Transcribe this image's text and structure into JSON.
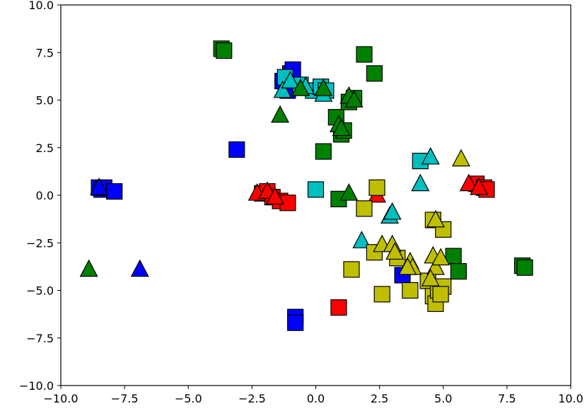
{
  "chart_data": {
    "type": "scatter",
    "title": "",
    "xlabel": "",
    "ylabel": "",
    "xlim": [
      -10,
      10
    ],
    "ylim": [
      -10,
      10
    ],
    "x_ticks": [
      -10.0,
      -7.5,
      -5.0,
      -2.5,
      0.0,
      2.5,
      5.0,
      7.5,
      10.0
    ],
    "y_ticks": [
      -10.0,
      -7.5,
      -5.0,
      -2.5,
      0.0,
      2.5,
      5.0,
      7.5,
      10.0
    ],
    "x_tick_labels": [
      "−10.0",
      "−7.5",
      "−5.0",
      "−2.5",
      "0.0",
      "2.5",
      "5.0",
      "7.5",
      "10.0"
    ],
    "y_tick_labels": [
      "−10.0",
      "−7.5",
      "−5.0",
      "−2.5",
      "0.0",
      "2.5",
      "5.0",
      "7.5",
      "10.0"
    ],
    "grid": false,
    "legend": "none",
    "series": [
      {
        "color": "#0000ff",
        "marker": "square",
        "points": [
          [
            -8.5,
            0.4
          ],
          [
            -8.4,
            0.3
          ],
          [
            -8.3,
            0.4
          ],
          [
            -7.9,
            0.2
          ],
          [
            -3.1,
            2.4
          ],
          [
            -1.0,
            6.4
          ],
          [
            -0.9,
            6.6
          ],
          [
            -1.3,
            6.0
          ],
          [
            -1.1,
            5.5
          ],
          [
            -0.8,
            -6.4
          ],
          [
            -0.8,
            -6.7
          ],
          [
            3.4,
            -4.2
          ]
        ]
      },
      {
        "color": "#0000ff",
        "marker": "triangle",
        "points": [
          [
            -8.5,
            0.4
          ],
          [
            -6.9,
            -3.9
          ]
        ]
      },
      {
        "color": "#00bfbf",
        "marker": "square",
        "points": [
          [
            -1.2,
            6.2
          ],
          [
            -0.6,
            5.8
          ],
          [
            -0.1,
            5.5
          ],
          [
            0.0,
            0.3
          ],
          [
            0.2,
            5.7
          ],
          [
            0.4,
            5.5
          ],
          [
            4.1,
            1.8
          ]
        ]
      },
      {
        "color": "#00bfbf",
        "marker": "triangle",
        "points": [
          [
            -1.3,
            5.5
          ],
          [
            -1.0,
            6.0
          ],
          [
            -0.4,
            5.7
          ],
          [
            0.3,
            5.3
          ],
          [
            4.1,
            0.6
          ],
          [
            4.5,
            2.0
          ],
          [
            2.9,
            -1.1
          ],
          [
            3.0,
            -0.9
          ],
          [
            1.8,
            -2.4
          ]
        ]
      },
      {
        "color": "#008000",
        "marker": "square",
        "points": [
          [
            -3.7,
            7.7
          ],
          [
            -3.6,
            7.6
          ],
          [
            0.3,
            2.3
          ],
          [
            0.9,
            -0.2
          ],
          [
            0.8,
            4.1
          ],
          [
            1.0,
            3.2
          ],
          [
            1.1,
            3.4
          ],
          [
            1.3,
            4.9
          ],
          [
            1.5,
            5.1
          ],
          [
            1.9,
            7.4
          ],
          [
            2.3,
            6.4
          ],
          [
            5.4,
            -3.2
          ],
          [
            5.6,
            -4.0
          ],
          [
            8.1,
            -3.7
          ],
          [
            8.2,
            -3.8
          ]
        ]
      },
      {
        "color": "#008000",
        "marker": "triangle",
        "points": [
          [
            -1.4,
            4.2
          ],
          [
            -0.6,
            5.6
          ],
          [
            0.3,
            5.6
          ],
          [
            1.3,
            5.2
          ],
          [
            1.5,
            5.0
          ],
          [
            0.9,
            3.7
          ],
          [
            1.0,
            3.5
          ],
          [
            1.3,
            0.1
          ],
          [
            -8.9,
            -3.9
          ]
        ]
      },
      {
        "color": "#ff0000",
        "marker": "square",
        "points": [
          [
            -2.1,
            0.1
          ],
          [
            -1.9,
            0.2
          ],
          [
            -1.7,
            -0.1
          ],
          [
            -1.4,
            -0.3
          ],
          [
            -1.1,
            -0.4
          ],
          [
            0.9,
            -5.9
          ],
          [
            6.3,
            0.6
          ],
          [
            6.6,
            0.4
          ],
          [
            6.7,
            0.3
          ]
        ]
      },
      {
        "color": "#ff0000",
        "marker": "triangle",
        "points": [
          [
            -2.3,
            0.1
          ],
          [
            -1.9,
            0.2
          ],
          [
            -1.6,
            -0.1
          ],
          [
            2.4,
            0.0
          ],
          [
            6.0,
            0.6
          ],
          [
            6.4,
            0.4
          ]
        ]
      },
      {
        "color": "#bfbf00",
        "marker": "square",
        "points": [
          [
            1.9,
            -0.7
          ],
          [
            2.4,
            0.4
          ],
          [
            2.3,
            -3.0
          ],
          [
            3.2,
            -3.3
          ],
          [
            1.4,
            -3.9
          ],
          [
            2.6,
            -5.2
          ],
          [
            3.7,
            -5.0
          ],
          [
            4.6,
            -1.3
          ],
          [
            5.0,
            -1.8
          ],
          [
            4.4,
            -4.5
          ],
          [
            4.6,
            -5.3
          ],
          [
            4.7,
            -5.7
          ],
          [
            4.8,
            -5.0
          ],
          [
            5.0,
            -4.8
          ],
          [
            4.9,
            -5.2
          ]
        ]
      },
      {
        "color": "#bfbf00",
        "marker": "triangle",
        "points": [
          [
            5.7,
            1.9
          ],
          [
            4.7,
            -1.3
          ],
          [
            2.6,
            -2.6
          ],
          [
            3.0,
            -2.6
          ],
          [
            3.1,
            -3.0
          ],
          [
            3.7,
            -3.5
          ],
          [
            3.8,
            -3.8
          ],
          [
            4.6,
            -3.2
          ],
          [
            4.7,
            -3.8
          ],
          [
            4.9,
            -3.3
          ],
          [
            3.6,
            -3.8
          ],
          [
            4.5,
            -4.4
          ]
        ]
      }
    ]
  }
}
